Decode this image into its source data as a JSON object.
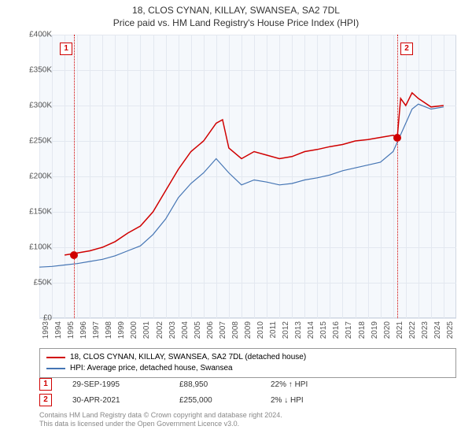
{
  "title": "18, CLOS CYNAN, KILLAY, SWANSEA, SA2 7DL",
  "subtitle": "Price paid vs. HM Land Registry's House Price Index (HPI)",
  "chart": {
    "type": "line",
    "background_color": "#f5f8fc",
    "grid_color": "#e3e8f0",
    "axis_color": "#d0d7e2",
    "tick_label_color": "#555555",
    "tick_fontsize": 10,
    "x_start_year": 1993,
    "x_end_year": 2025,
    "x_ticks": [
      1993,
      1994,
      1995,
      1996,
      1997,
      1998,
      1999,
      2000,
      2001,
      2002,
      2003,
      2004,
      2005,
      2006,
      2007,
      2008,
      2009,
      2010,
      2011,
      2012,
      2013,
      2014,
      2015,
      2016,
      2017,
      2018,
      2019,
      2020,
      2021,
      2022,
      2023,
      2024,
      2025
    ],
    "ylim": [
      0,
      400000
    ],
    "y_ticks": [
      0,
      50000,
      100000,
      150000,
      200000,
      250000,
      300000,
      350000,
      400000
    ],
    "y_tick_labels": [
      "£0",
      "£50K",
      "£100K",
      "£150K",
      "£200K",
      "£250K",
      "£300K",
      "£350K",
      "£400K"
    ],
    "y_currency_prefix": "£",
    "series": [
      {
        "name": "18, CLOS CYNAN, KILLAY, SWANSEA, SA2 7DL (detached house)",
        "color": "#d00000",
        "line_width": 1.5,
        "data": [
          [
            1995,
            89000
          ],
          [
            1996,
            92000
          ],
          [
            1997,
            95000
          ],
          [
            1998,
            100000
          ],
          [
            1999,
            108000
          ],
          [
            2000,
            120000
          ],
          [
            2001,
            130000
          ],
          [
            2002,
            150000
          ],
          [
            2003,
            180000
          ],
          [
            2004,
            210000
          ],
          [
            2005,
            235000
          ],
          [
            2006,
            250000
          ],
          [
            2007,
            275000
          ],
          [
            2007.5,
            280000
          ],
          [
            2008,
            240000
          ],
          [
            2009,
            225000
          ],
          [
            2010,
            235000
          ],
          [
            2011,
            230000
          ],
          [
            2012,
            225000
          ],
          [
            2013,
            228000
          ],
          [
            2014,
            235000
          ],
          [
            2015,
            238000
          ],
          [
            2016,
            242000
          ],
          [
            2017,
            245000
          ],
          [
            2018,
            250000
          ],
          [
            2019,
            252000
          ],
          [
            2020,
            255000
          ],
          [
            2021,
            258000
          ],
          [
            2021.33,
            255000
          ],
          [
            2021.6,
            310000
          ],
          [
            2022,
            300000
          ],
          [
            2022.5,
            318000
          ],
          [
            2023,
            310000
          ],
          [
            2024,
            298000
          ],
          [
            2025,
            300000
          ]
        ]
      },
      {
        "name": "HPI: Average price, detached house, Swansea",
        "color": "#4575b4",
        "line_width": 1.2,
        "data": [
          [
            1993,
            72000
          ],
          [
            1994,
            73000
          ],
          [
            1995,
            75000
          ],
          [
            1996,
            77000
          ],
          [
            1997,
            80000
          ],
          [
            1998,
            83000
          ],
          [
            1999,
            88000
          ],
          [
            2000,
            95000
          ],
          [
            2001,
            102000
          ],
          [
            2002,
            118000
          ],
          [
            2003,
            140000
          ],
          [
            2004,
            170000
          ],
          [
            2005,
            190000
          ],
          [
            2006,
            205000
          ],
          [
            2007,
            225000
          ],
          [
            2008,
            205000
          ],
          [
            2009,
            188000
          ],
          [
            2010,
            195000
          ],
          [
            2011,
            192000
          ],
          [
            2012,
            188000
          ],
          [
            2013,
            190000
          ],
          [
            2014,
            195000
          ],
          [
            2015,
            198000
          ],
          [
            2016,
            202000
          ],
          [
            2017,
            208000
          ],
          [
            2018,
            212000
          ],
          [
            2019,
            216000
          ],
          [
            2020,
            220000
          ],
          [
            2021,
            235000
          ],
          [
            2022,
            275000
          ],
          [
            2022.5,
            295000
          ],
          [
            2023,
            302000
          ],
          [
            2024,
            295000
          ],
          [
            2025,
            298000
          ]
        ]
      }
    ],
    "events": [
      {
        "num": "1",
        "year": 1995.75,
        "date": "29-SEP-1995",
        "price": 88950,
        "price_label": "£88,950",
        "diff_label": "22% ↑ HPI",
        "vline_color": "#d00000",
        "marker_color": "#d00000"
      },
      {
        "num": "2",
        "year": 2021.33,
        "date": "30-APR-2021",
        "price": 255000,
        "price_label": "£255,000",
        "diff_label": "2% ↓ HPI",
        "vline_color": "#d00000",
        "marker_color": "#d00000"
      }
    ]
  },
  "legend": {
    "border_color": "#999999",
    "fontsize": 10
  },
  "footer": {
    "line1": "Contains HM Land Registry data © Crown copyright and database right 2024.",
    "line2": "This data is licensed under the Open Government Licence v3.0.",
    "color": "#888888",
    "fontsize": 9
  }
}
